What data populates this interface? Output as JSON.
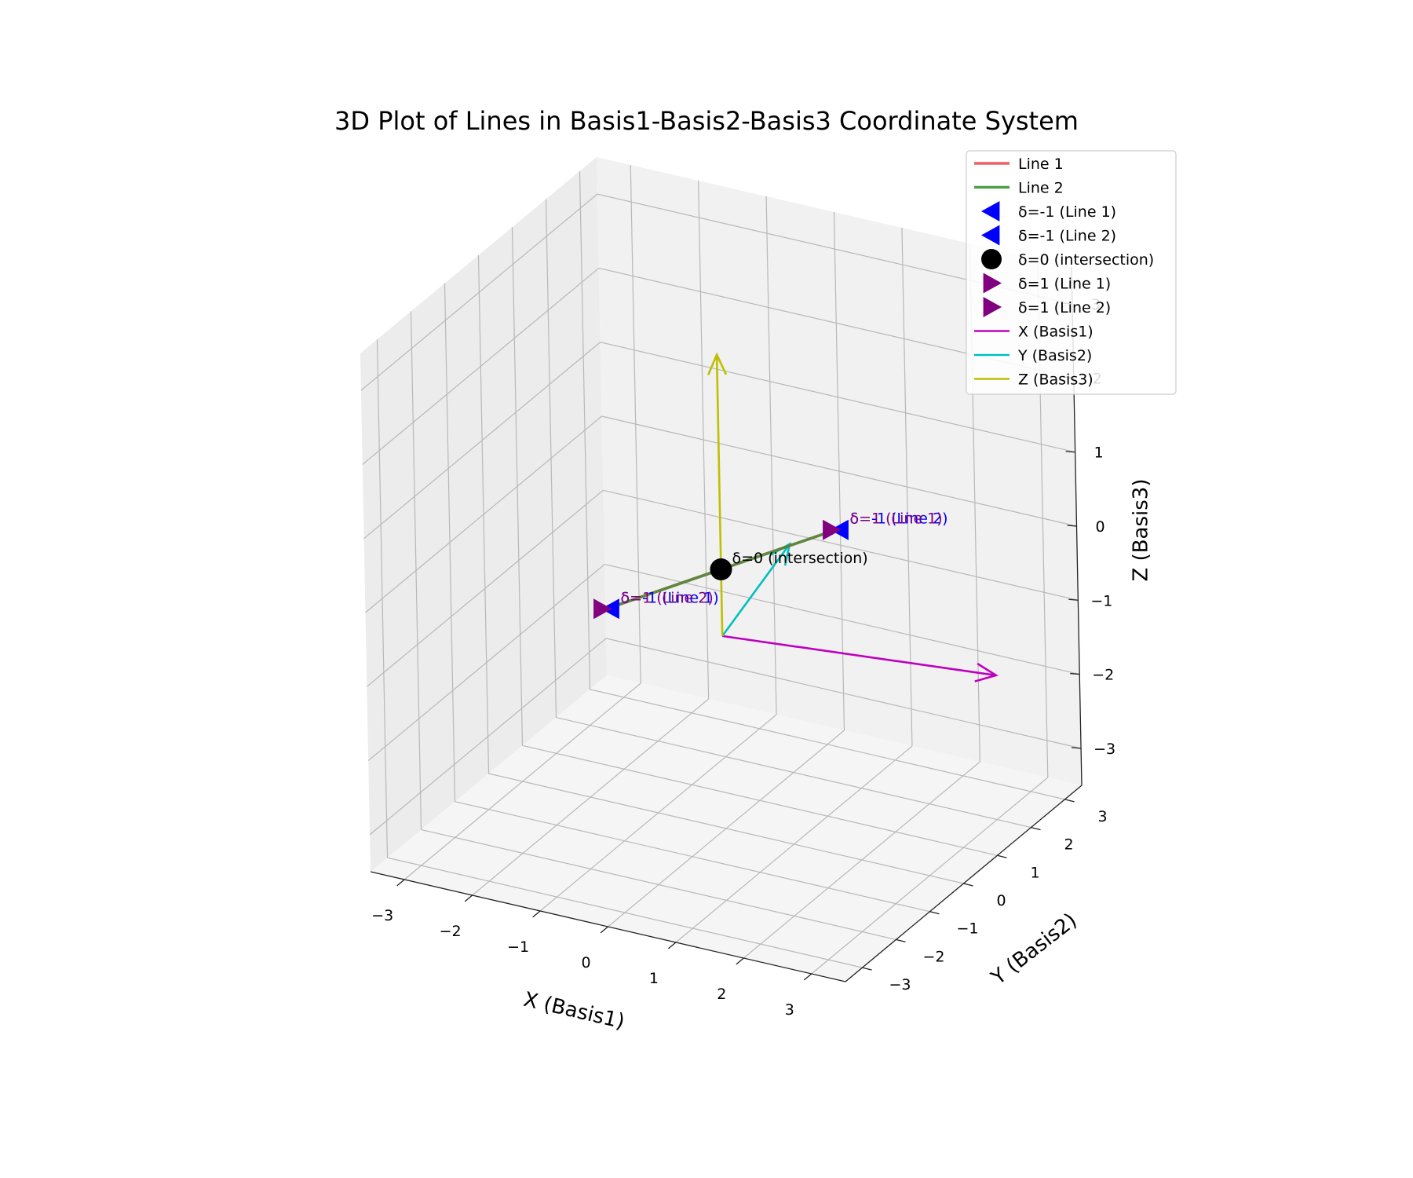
{
  "chart_data": {
    "type": "line3d",
    "title": "3D Plot of Lines in Basis1-Basis2-Basis3 Coordinate System",
    "xlabel": "X (Basis1)",
    "ylabel": "Y (Basis2)",
    "zlabel": "Z (Basis3)",
    "xlim": [
      -3.5,
      3.5
    ],
    "ylim": [
      -3.5,
      3.5
    ],
    "zlim": [
      -3.5,
      3.5
    ],
    "ticks": [
      -3,
      -2,
      -1,
      0,
      1,
      2,
      3
    ],
    "tick_labels": [
      "−3",
      "−2",
      "−1",
      "0",
      "1",
      "2",
      "3"
    ],
    "grid": true,
    "legend_position": "top-right",
    "series": [
      {
        "name": "Line 1",
        "color": "#e8474b",
        "points": [
          [
            1.19,
            1.02,
            0.4
          ],
          [
            -1.19,
            -1.02,
            -0.4
          ]
        ]
      },
      {
        "name": "Line 2",
        "color": "#2f8f2f",
        "points": [
          [
            1.19,
            1.02,
            0.4
          ],
          [
            -1.19,
            -1.02,
            -0.4
          ]
        ]
      }
    ],
    "markers": [
      {
        "name": "δ=-1 (Line 1)",
        "label": "δ=-1 (Line 1)",
        "point": [
          -1.19,
          -1.02,
          -0.4
        ],
        "shape": "triangle-left",
        "color": "#0000ff"
      },
      {
        "name": "δ=-1 (Line 2)",
        "label": "δ=-1 (Line 2)",
        "point": [
          1.19,
          1.02,
          0.4
        ],
        "shape": "triangle-left",
        "color": "#0000ff"
      },
      {
        "name": "δ=0 (intersection)",
        "label": "δ=0 (intersection)",
        "point": [
          0,
          0,
          0
        ],
        "shape": "circle",
        "color": "#000000"
      },
      {
        "name": "δ=1 (Line 1)",
        "label": "δ=1 (Line 1)",
        "point": [
          1.19,
          1.02,
          0.4
        ],
        "shape": "triangle-right",
        "color": "#800080"
      },
      {
        "name": "δ=1 (Line 2)",
        "label": "δ=1 (Line 2)",
        "point": [
          -1.19,
          -1.02,
          -0.4
        ],
        "shape": "triangle-right",
        "color": "#800080"
      }
    ],
    "basis_vectors": [
      {
        "name": "X (Basis1)",
        "color": "#bf00bf",
        "origin": [
          0,
          0,
          -0.9
        ],
        "vector": [
          3.7,
          0.67,
          0
        ]
      },
      {
        "name": "Y (Basis2)",
        "color": "#00bfbf",
        "origin": [
          0,
          0,
          -0.9
        ],
        "vector": [
          -0.5,
          3.0,
          0
        ]
      },
      {
        "name": "Z (Basis3)",
        "color": "#bfbf00",
        "origin": [
          0,
          0,
          -0.9
        ],
        "vector": [
          0,
          0,
          3.8
        ]
      }
    ],
    "legend": [
      {
        "label": "Line 1",
        "kind": "line",
        "color": "#e8474b"
      },
      {
        "label": "Line 2",
        "kind": "line",
        "color": "#2f8f2f"
      },
      {
        "label": "δ=-1 (Line 1)",
        "kind": "triangle-left",
        "color": "#0000ff"
      },
      {
        "label": "δ=-1 (Line 2)",
        "kind": "triangle-left",
        "color": "#0000ff"
      },
      {
        "label": "δ=0 (intersection)",
        "kind": "circle",
        "color": "#000000"
      },
      {
        "label": "δ=1 (Line 1)",
        "kind": "triangle-right",
        "color": "#800080"
      },
      {
        "label": "δ=1 (Line 2)",
        "kind": "triangle-right",
        "color": "#800080"
      },
      {
        "label": "X (Basis1)",
        "kind": "thinline",
        "color": "#bf00bf"
      },
      {
        "label": "Y (Basis2)",
        "kind": "thinline",
        "color": "#00bfbf"
      },
      {
        "label": "Z (Basis3)",
        "kind": "thinline",
        "color": "#bfbf00"
      }
    ]
  }
}
